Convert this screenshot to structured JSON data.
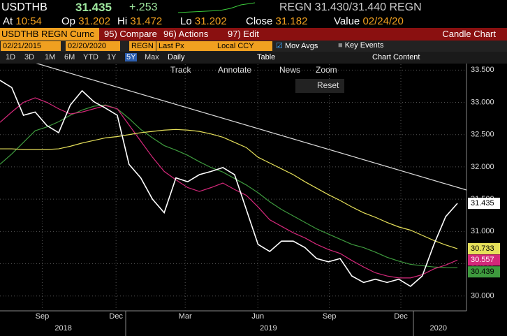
{
  "header": {
    "ticker": "USDTHB",
    "price": "31.435",
    "change": "+.253",
    "quote": "REGN 31.430/31.440 REGN",
    "stats": [
      {
        "label": "At",
        "value": "10:54"
      },
      {
        "label": "Op",
        "value": "31.202"
      },
      {
        "label": "Hi",
        "value": "31.472"
      },
      {
        "label": "Lo",
        "value": "31.202"
      },
      {
        "label": "Close",
        "value": "31.182"
      },
      {
        "label": "Value",
        "value": "02/24/20"
      }
    ]
  },
  "toolbar": {
    "security": "USDTHB REGN Curnc",
    "buttons": [
      "95) Compare",
      "96) Actions",
      "97) Edit"
    ],
    "view": "Candle Chart"
  },
  "settings": {
    "start": "02/21/2015",
    "end": "02/20/2020",
    "source": "REGN",
    "field": "Last Px",
    "currency": "Local CCY",
    "options": [
      "Mov Avgs",
      "Key Events"
    ]
  },
  "periods": {
    "items": [
      "1D",
      "3D",
      "1M",
      "6M",
      "YTD",
      "1Y",
      "5Y",
      "Max"
    ],
    "frequency": "Daily",
    "table": "Table",
    "content": "Chart Content"
  },
  "tools": [
    "Track",
    "Annotate",
    "News",
    "Zoom",
    "Reset"
  ],
  "chart_data": {
    "type": "line",
    "xlim": [
      0,
      39.8
    ],
    "ylim": [
      29.77,
      33.59
    ],
    "grid": true,
    "xticks": [
      {
        "value": 3.6,
        "label": "Sep"
      },
      {
        "value": 9.9,
        "label": "Dec"
      },
      {
        "value": 15.8,
        "label": "Mar"
      },
      {
        "value": 22,
        "label": "Jun"
      },
      {
        "value": 28.1,
        "label": "Sep"
      },
      {
        "value": 34.2,
        "label": "Dec"
      }
    ],
    "year_ticks": [
      {
        "value": 5.4,
        "label": "2018"
      },
      {
        "value": 22.9,
        "label": "2019"
      },
      {
        "value": 37.4,
        "label": "2020"
      }
    ],
    "yticks": [
      {
        "value": 30,
        "label": "30.000"
      },
      {
        "value": 30.5,
        "label": "30.500"
      },
      {
        "value": 31,
        "label": "31.000"
      },
      {
        "value": 31.5,
        "label": "31.500"
      },
      {
        "value": 32,
        "label": "32.000"
      },
      {
        "value": 32.5,
        "label": "32.500"
      },
      {
        "value": 33,
        "label": "33.000"
      },
      {
        "value": 33.5,
        "label": "33.500"
      }
    ],
    "series": [
      {
        "color": "#ffffff",
        "values": [
          33.34,
          33.23,
          32.8,
          32.85,
          32.64,
          32.53,
          32.96,
          33.18,
          33.01,
          32.91,
          32.8,
          32.04,
          31.83,
          31.5,
          31.29,
          31.83,
          31.77,
          31.88,
          31.93,
          31.99,
          31.88,
          31.34,
          30.8,
          30.69,
          30.85,
          30.85,
          30.75,
          30.58,
          30.53,
          30.58,
          30.31,
          30.21,
          30.26,
          30.21,
          30.26,
          30.15,
          30.31,
          30.8,
          31.23,
          31.435
        ]
      },
      {
        "color": "#e6e05a",
        "values": [
          32.28,
          32.28,
          32.27,
          32.27,
          32.27,
          32.28,
          32.32,
          32.37,
          32.41,
          32.45,
          32.47,
          32.5,
          32.53,
          32.55,
          32.57,
          32.58,
          32.57,
          32.55,
          32.51,
          32.46,
          32.38,
          32.3,
          32.15,
          32.06,
          31.97,
          31.88,
          31.77,
          31.67,
          31.57,
          31.48,
          31.38,
          31.29,
          31.22,
          31.14,
          31.07,
          31.02,
          30.94,
          30.86,
          30.79,
          30.733
        ]
      },
      {
        "color": "#d4287a",
        "values": [
          32.69,
          32.85,
          33.0,
          33.07,
          33.0,
          32.9,
          32.82,
          32.85,
          32.9,
          32.95,
          32.9,
          32.65,
          32.4,
          32.15,
          31.93,
          31.8,
          31.68,
          31.62,
          31.68,
          31.75,
          31.65,
          31.56,
          31.38,
          31.18,
          31.08,
          30.98,
          30.9,
          30.8,
          30.72,
          30.66,
          30.55,
          30.45,
          30.36,
          30.31,
          30.28,
          30.28,
          30.33,
          30.42,
          30.48,
          30.557
        ]
      },
      {
        "color": "#3e9a3e",
        "values": [
          32.04,
          32.2,
          32.38,
          32.56,
          32.62,
          32.7,
          32.8,
          32.88,
          32.94,
          32.96,
          32.9,
          32.75,
          32.58,
          32.45,
          32.33,
          32.26,
          32.18,
          32.08,
          31.99,
          31.92,
          31.82,
          31.72,
          31.6,
          31.46,
          31.34,
          31.24,
          31.14,
          31.04,
          30.96,
          30.88,
          30.8,
          30.75,
          30.68,
          30.6,
          30.54,
          30.49,
          30.47,
          30.45,
          30.44,
          30.439
        ]
      }
    ]
  }
}
